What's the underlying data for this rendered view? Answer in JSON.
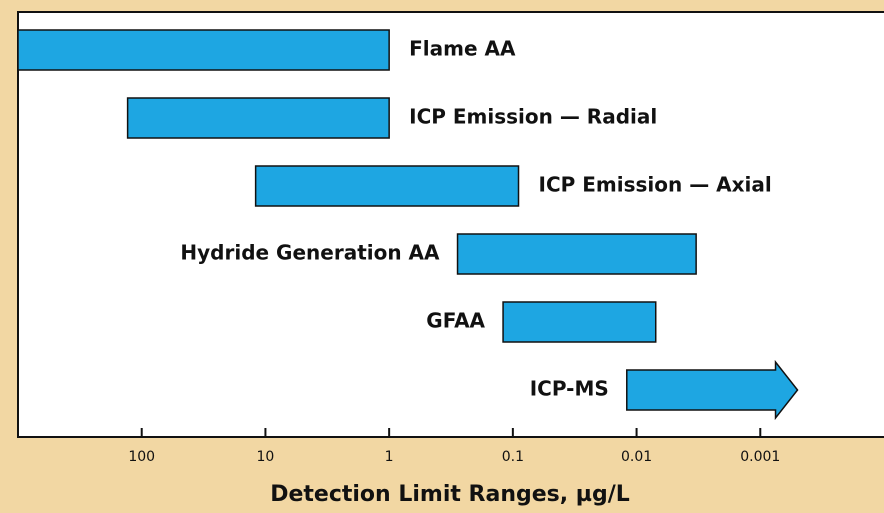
{
  "chart_data": {
    "type": "range-bar",
    "xlabel": "Detection Limit Ranges, µg/L",
    "categories": [
      "Flame AA",
      "ICP Emission — Radial",
      "ICP Emission — Axial",
      "Hydride Generation AA",
      "GFAA",
      "ICP-MS"
    ],
    "values": [
      [
        1000,
        1
      ],
      [
        130,
        1
      ],
      [
        12,
        0.09
      ],
      [
        0.28,
        0.0033
      ],
      [
        0.12,
        0.007
      ],
      [
        0.012,
        0.0005
      ]
    ],
    "color": "#1ea6e2",
    "xscale": "log",
    "xlim": [
      1000,
      0.0001
    ],
    "xticks": [
      100,
      10,
      1,
      0.1,
      0.01,
      0.001
    ]
  }
}
